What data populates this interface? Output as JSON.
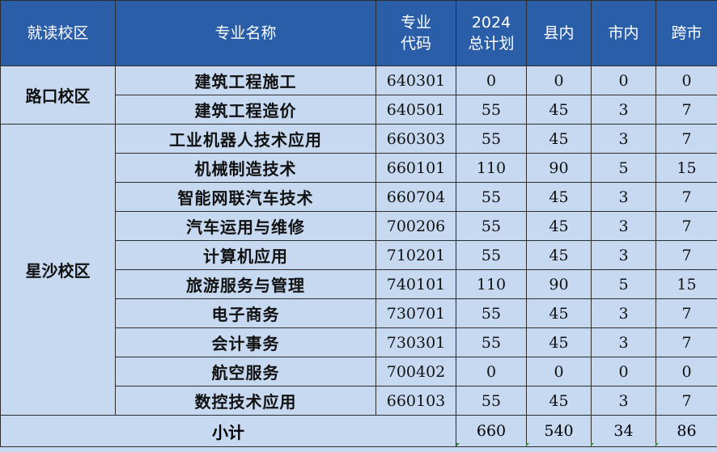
{
  "header": {
    "campus": "就读校区",
    "major": "专业名称",
    "code_line1": "专业",
    "code_line2": "代码",
    "plan_line1": "2024",
    "plan_line2": "总计划",
    "county": "县内",
    "city": "市内",
    "cross_city": "跨市"
  },
  "campuses": [
    {
      "name": "路口校区",
      "rows": [
        {
          "major": "建筑工程施工",
          "code": "640301",
          "total": "0",
          "county": "0",
          "city": "0",
          "cross": "0"
        },
        {
          "major": "建筑工程造价",
          "code": "640501",
          "total": "55",
          "county": "45",
          "city": "3",
          "cross": "7"
        }
      ]
    },
    {
      "name": "星沙校区",
      "rows": [
        {
          "major": "工业机器人技术应用",
          "code": "660303",
          "total": "55",
          "county": "45",
          "city": "3",
          "cross": "7"
        },
        {
          "major": "机械制造技术",
          "code": "660101",
          "total": "110",
          "county": "90",
          "city": "5",
          "cross": "15"
        },
        {
          "major": "智能网联汽车技术",
          "code": "660704",
          "total": "55",
          "county": "45",
          "city": "3",
          "cross": "7"
        },
        {
          "major": "汽车运用与维修",
          "code": "700206",
          "total": "55",
          "county": "45",
          "city": "3",
          "cross": "7"
        },
        {
          "major": "计算机应用",
          "code": "710201",
          "total": "55",
          "county": "45",
          "city": "3",
          "cross": "7"
        },
        {
          "major": "旅游服务与管理",
          "code": "740101",
          "total": "110",
          "county": "90",
          "city": "5",
          "cross": "15"
        },
        {
          "major": "电子商务",
          "code": "730701",
          "total": "55",
          "county": "45",
          "city": "3",
          "cross": "7"
        },
        {
          "major": "会计事务",
          "code": "730301",
          "total": "55",
          "county": "45",
          "city": "3",
          "cross": "7"
        },
        {
          "major": "航空服务",
          "code": "700402",
          "total": "0",
          "county": "0",
          "city": "0",
          "cross": "0"
        },
        {
          "major": "数控技术应用",
          "code": "660103",
          "total": "55",
          "county": "45",
          "city": "3",
          "cross": "7"
        }
      ]
    }
  ],
  "subtotal": {
    "label": "小计",
    "total": "660",
    "county": "540",
    "city": "34",
    "cross": "86"
  },
  "colors": {
    "header_bg": "#2b5ea8",
    "cell_bg": "#c6d9f1",
    "error_tick": "#2f8a3a"
  }
}
